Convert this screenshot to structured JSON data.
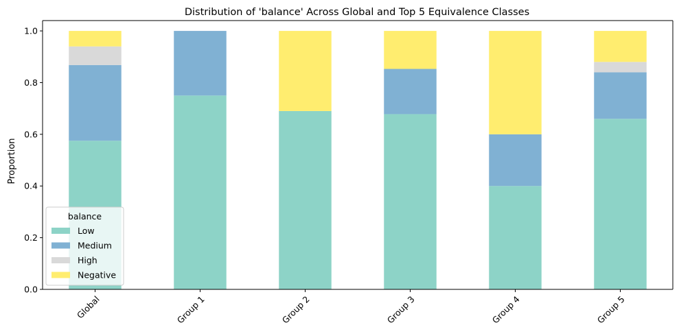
{
  "chart_data": {
    "type": "bar",
    "stacked": true,
    "title": "Distribution of 'balance' Across Global and Top 5 Equivalence Classes",
    "xlabel": "",
    "ylabel": "Proportion",
    "ylim": [
      0,
      1.04
    ],
    "yticks": [
      "0.0",
      "0.2",
      "0.4",
      "0.6",
      "0.8",
      "1.0"
    ],
    "categories": [
      "Global",
      "Group 1",
      "Group 2",
      "Group 3",
      "Group 4",
      "Group 5"
    ],
    "series": [
      {
        "name": "Low",
        "color": "#8dd3c7",
        "values": [
          0.575,
          0.75,
          0.69,
          0.678,
          0.4,
          0.66
        ]
      },
      {
        "name": "Medium",
        "color": "#80b1d3",
        "values": [
          0.293,
          0.25,
          0.0,
          0.175,
          0.2,
          0.18
        ]
      },
      {
        "name": "High",
        "color": "#d9d9d9",
        "values": [
          0.072,
          0.0,
          0.0,
          0.0,
          0.0,
          0.04
        ]
      },
      {
        "name": "Negative",
        "color": "#ffed6f",
        "values": [
          0.06,
          0.0,
          0.31,
          0.147,
          0.4,
          0.12
        ]
      }
    ],
    "legend": {
      "title": "balance",
      "position": "lower-left"
    },
    "grid": false
  }
}
